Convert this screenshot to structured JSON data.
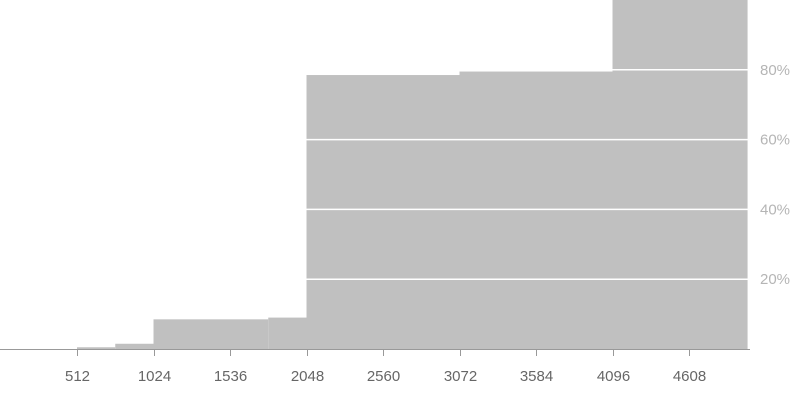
{
  "chart_data": {
    "type": "area",
    "title": "",
    "xlabel": "",
    "ylabel": "",
    "colors": {
      "fill": "#c0c0c0",
      "grid": "#ffffff",
      "baseline": "#999999",
      "tick_text": "#666666",
      "ytick_text": "#b5b5b5"
    },
    "x_ticks": [
      512,
      1024,
      1536,
      2048,
      2560,
      3072,
      3584,
      4096,
      4608
    ],
    "y_ticks": [
      {
        "value": 20,
        "label": "20%"
      },
      {
        "value": 40,
        "label": "40%"
      },
      {
        "value": 60,
        "label": "60%"
      },
      {
        "value": 80,
        "label": "80%"
      }
    ],
    "y_axis_position": "right",
    "ylim": [
      0,
      100
    ],
    "steps": [
      {
        "x_start": 512,
        "x_end": 768,
        "value": 0.5
      },
      {
        "x_start": 768,
        "x_end": 1024,
        "value": 1.5
      },
      {
        "x_start": 1024,
        "x_end": 1792,
        "value": 8.5
      },
      {
        "x_start": 1792,
        "x_end": 2048,
        "value": 9
      },
      {
        "x_start": 2048,
        "x_end": 3072,
        "value": 78.5
      },
      {
        "x_start": 3072,
        "x_end": 4096,
        "value": 79.5
      },
      {
        "x_start": 4096,
        "x_end": 5000,
        "value": 100
      }
    ]
  }
}
